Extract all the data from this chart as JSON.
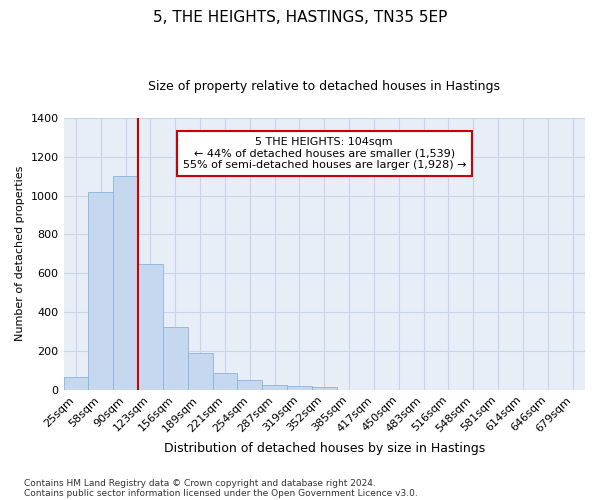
{
  "title": "5, THE HEIGHTS, HASTINGS, TN35 5EP",
  "subtitle": "Size of property relative to detached houses in Hastings",
  "xlabel": "Distribution of detached houses by size in Hastings",
  "ylabel": "Number of detached properties",
  "footnote1": "Contains HM Land Registry data © Crown copyright and database right 2024.",
  "footnote2": "Contains public sector information licensed under the Open Government Licence v3.0.",
  "categories": [
    "25sqm",
    "58sqm",
    "90sqm",
    "123sqm",
    "156sqm",
    "189sqm",
    "221sqm",
    "254sqm",
    "287sqm",
    "319sqm",
    "352sqm",
    "385sqm",
    "417sqm",
    "450sqm",
    "483sqm",
    "516sqm",
    "548sqm",
    "581sqm",
    "614sqm",
    "646sqm",
    "679sqm"
  ],
  "values": [
    65,
    1020,
    1100,
    650,
    325,
    190,
    88,
    48,
    25,
    20,
    15,
    0,
    0,
    0,
    0,
    0,
    0,
    0,
    0,
    0,
    0
  ],
  "bar_color": "#c5d8f0",
  "bar_edge_color": "#8ab4d8",
  "grid_color": "#c8d4e8",
  "background_color": "#e8eef8",
  "vline_color": "#cc0000",
  "vline_position": 2.5,
  "annotation_text": "5 THE HEIGHTS: 104sqm\n← 44% of detached houses are smaller (1,539)\n55% of semi-detached houses are larger (1,928) →",
  "annotation_box_color": "#ffffff",
  "annotation_box_edge": "#cc0000",
  "ylim": [
    0,
    1400
  ],
  "yticks": [
    0,
    200,
    400,
    600,
    800,
    1000,
    1200,
    1400
  ],
  "title_fontsize": 11,
  "subtitle_fontsize": 9,
  "ylabel_fontsize": 8,
  "xlabel_fontsize": 9,
  "tick_fontsize": 8,
  "annot_fontsize": 8,
  "footnote_fontsize": 6.5
}
